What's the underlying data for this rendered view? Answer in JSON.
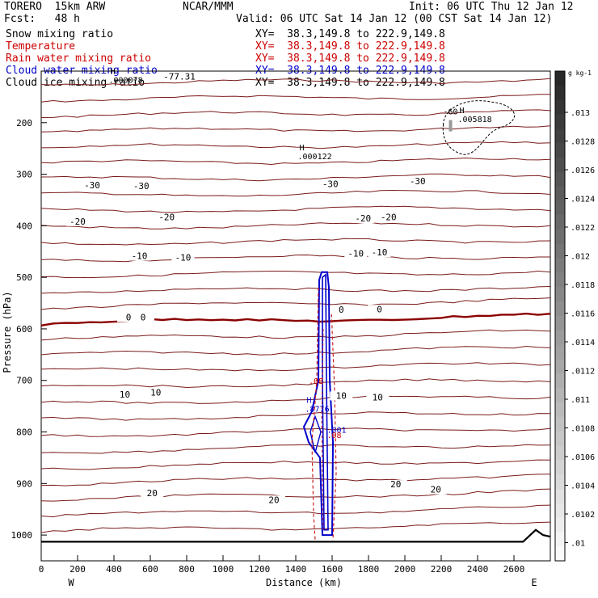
{
  "header": {
    "model": "TORERO  15km ARW",
    "center": "NCAR/MMM",
    "init": "Init: 06 UTC Thu 12 Jan 12",
    "fcst": "Fcst:   48 h",
    "valid": "Valid: 06 UTC Sat 14 Jan 12 (00 CST Sat 14 Jan 12)"
  },
  "legend": [
    {
      "label": "Snow mixing ratio",
      "xy": "XY=  38.3,149.8 to 222.9,149.8",
      "color": "#000000"
    },
    {
      "label": "Temperature",
      "xy": "XY=  38.3,149.8 to 222.9,149.8",
      "color": "#cc0000"
    },
    {
      "label": "Rain water mixing ratio",
      "xy": "XY=  38.3,149.8 to 222.9,149.8",
      "color": "#cc0000"
    },
    {
      "label": "Cloud water mixing ratio",
      "xy": "XY=  38.3,149.8 to 222.9,149.8",
      "color": "#0000cc"
    },
    {
      "label": "Cloud ice mixing ratio",
      "xy": "XY=  38.3,149.8 to 222.9,149.8",
      "color": "#000000"
    }
  ],
  "chart_data": {
    "type": "contour-cross-section",
    "xlabel": "Distance (km)",
    "ylabel": "Pressure (hPa)",
    "xlim": [
      0,
      2800
    ],
    "ylim": [
      1050,
      100
    ],
    "x_ticks": [
      0,
      200,
      400,
      600,
      800,
      1000,
      1200,
      1400,
      1600,
      1800,
      2000,
      2200,
      2400,
      2600
    ],
    "y_ticks": [
      200,
      300,
      400,
      500,
      600,
      700,
      800,
      900,
      1000
    ],
    "left_end_label": "W",
    "right_end_label": "E",
    "temperature_labels": [
      {
        "value": "-77.31",
        "x": 760,
        "p": 115
      },
      {
        "value": "-30",
        "x": 280,
        "p": 326
      },
      {
        "value": "-30",
        "x": 550,
        "p": 327
      },
      {
        "value": "-30",
        "x": 1590,
        "p": 323
      },
      {
        "value": "-30",
        "x": 2070,
        "p": 318
      },
      {
        "value": "-20",
        "x": 200,
        "p": 396
      },
      {
        "value": "-20",
        "x": 690,
        "p": 388
      },
      {
        "value": "-20",
        "x": 1770,
        "p": 390
      },
      {
        "value": "-20",
        "x": 1910,
        "p": 388
      },
      {
        "value": "-10",
        "x": 540,
        "p": 463
      },
      {
        "value": "-10",
        "x": 780,
        "p": 466
      },
      {
        "value": "-10",
        "x": 1730,
        "p": 458
      },
      {
        "value": "-10",
        "x": 1860,
        "p": 456
      },
      {
        "value": "0",
        "x": 480,
        "p": 582
      },
      {
        "value": "0",
        "x": 560,
        "p": 582
      },
      {
        "value": "0",
        "x": 1650,
        "p": 567
      },
      {
        "value": "0",
        "x": 1860,
        "p": 566
      },
      {
        "value": "10",
        "x": 460,
        "p": 732
      },
      {
        "value": "10",
        "x": 630,
        "p": 728
      },
      {
        "value": "10",
        "x": 1650,
        "p": 734
      },
      {
        "value": "10",
        "x": 1850,
        "p": 737
      },
      {
        "value": "20",
        "x": 610,
        "p": 923
      },
      {
        "value": "20",
        "x": 1280,
        "p": 936
      },
      {
        "value": "20",
        "x": 1950,
        "p": 906
      },
      {
        "value": "20",
        "x": 2170,
        "p": 916
      }
    ],
    "extrema_labels": [
      {
        "mark": "H",
        "value": ".000078",
        "x": 380,
        "p": 118,
        "color": "#000000"
      },
      {
        "mark": "H",
        "value": ".000122",
        "x": 1420,
        "p": 266,
        "color": "#000000"
      },
      {
        "mark": "H",
        "value": ".005818",
        "x": 2300,
        "p": 194,
        "color": "#000000"
      },
      {
        "mark": "",
        "value": "-60",
        "x": 2220,
        "p": 179,
        "color": "#000000"
      },
      {
        "mark": "H",
        "value": ".8776",
        "x": 1460,
        "p": 756,
        "color": "#0000cc"
      },
      {
        "mark": "",
        "value": ".001",
        "x": 1580,
        "p": 797,
        "color": "#0000cc"
      },
      {
        "mark": "",
        "value": ".08",
        "x": 1480,
        "p": 702,
        "color": "#cc0000"
      },
      {
        "mark": "",
        "value": ".08",
        "x": 1580,
        "p": 807,
        "color": "#cc0000"
      }
    ],
    "colorbar": {
      "unit": "g kg-1",
      "ticks": [
        ".013",
        ".0128",
        ".0126",
        ".0124",
        ".0122",
        ".012",
        ".0118",
        ".0116",
        ".0114",
        ".0112",
        ".011",
        ".0108",
        ".0106",
        ".0104",
        ".0102",
        ".01"
      ]
    }
  }
}
